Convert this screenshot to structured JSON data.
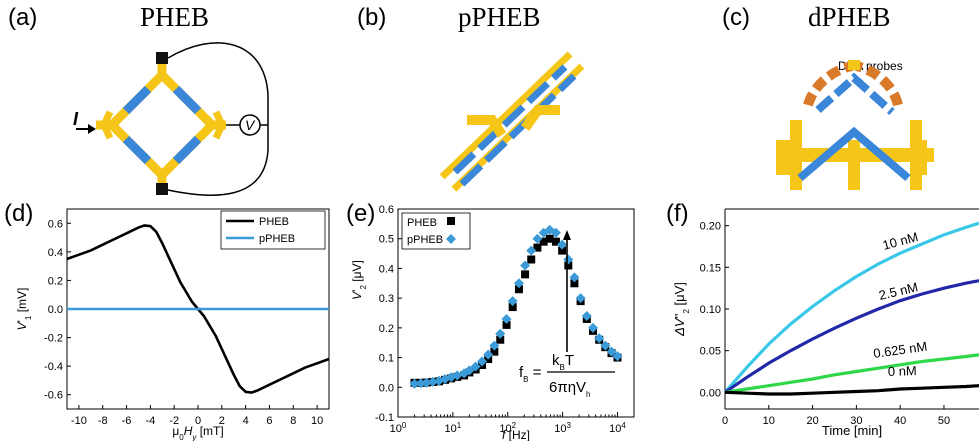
{
  "panels": {
    "a": {
      "label": "(a)",
      "title": "PHEB",
      "current": "I",
      "voltmeter": "V"
    },
    "b": {
      "label": "(b)",
      "title": "pPHEB"
    },
    "c": {
      "label": "(c)",
      "title": "dPHEB",
      "annotation": "DNA probes"
    },
    "d": {
      "label": "(d)"
    },
    "e": {
      "label": "(e)"
    },
    "f": {
      "label": "(f)"
    }
  },
  "colors": {
    "gold": "#f5c518",
    "blue": "#3a86d8",
    "orange": "#d97a2b",
    "black": "#000000",
    "cyan": "#39c8e8"
  },
  "chart_data": [
    {
      "panel": "d",
      "type": "line",
      "xlabel": "μ0Hy [mT]",
      "ylabel": "V'1 [mV]",
      "xlim": [
        -11,
        11
      ],
      "ylim": [
        -0.7,
        0.7
      ],
      "xticks": [
        -10,
        -8,
        -6,
        -4,
        -2,
        0,
        2,
        4,
        6,
        8,
        10
      ],
      "yticks": [
        -0.6,
        -0.4,
        -0.2,
        0.0,
        0.2,
        0.4,
        0.6
      ],
      "ytick_labels": [
        "-0.6",
        "-0.4",
        "-0.2",
        "0.0",
        "0.2",
        "0.4",
        "0.6"
      ],
      "legend": "top-right",
      "series": [
        {
          "name": "PHEB",
          "color": "#000000",
          "x": [
            -11,
            -10,
            -9,
            -8,
            -7,
            -6,
            -5,
            -4.5,
            -4,
            -3.5,
            -3,
            -2.5,
            -2,
            -1.5,
            -1,
            -0.5,
            0,
            0.5,
            1,
            1.5,
            2,
            2.5,
            3,
            3.5,
            4,
            4.5,
            5,
            6,
            7,
            8,
            9,
            10,
            11
          ],
          "y": [
            0.35,
            0.38,
            0.41,
            0.45,
            0.49,
            0.53,
            0.57,
            0.585,
            0.58,
            0.54,
            0.46,
            0.37,
            0.28,
            0.19,
            0.12,
            0.05,
            0.0,
            -0.05,
            -0.12,
            -0.19,
            -0.28,
            -0.37,
            -0.46,
            -0.54,
            -0.58,
            -0.585,
            -0.57,
            -0.53,
            -0.49,
            -0.45,
            -0.41,
            -0.38,
            -0.35
          ]
        },
        {
          "name": "pPHEB",
          "color": "#3a9bd8",
          "x": [
            -11,
            11
          ],
          "y": [
            0.0,
            0.0
          ]
        }
      ]
    },
    {
      "panel": "e",
      "type": "scatter",
      "xlabel": "f [Hz]",
      "ylabel": "V'2 [μV]",
      "xscale": "log",
      "xlim": [
        1,
        20000
      ],
      "ylim": [
        -0.1,
        0.6
      ],
      "xtick_labels": [
        "10^0",
        "10^1",
        "10^2",
        "10^3",
        "10^4"
      ],
      "yticks": [
        -0.1,
        0.0,
        0.1,
        0.2,
        0.3,
        0.4,
        0.5,
        0.6
      ],
      "ytick_labels": [
        "-0.1",
        "0.0",
        "0.1",
        "0.2",
        "0.3",
        "0.4",
        "0.5",
        "0.6"
      ],
      "legend": "top-left",
      "formula": {
        "lhs": "f",
        "lhs_sub": "B",
        "num": "k",
        "num_sub": "B",
        "num_tail": "T",
        "den": "6πηV",
        "den_sub": "h"
      },
      "series": [
        {
          "name": "PHEB",
          "marker": "square",
          "color": "#000000",
          "x": [
            2,
            2.6,
            3.3,
            4.3,
            5.6,
            7.2,
            9.3,
            12,
            16,
            20,
            26,
            34,
            44,
            57,
            73,
            95,
            123,
            160,
            207,
            268,
            347,
            450,
            583,
            756,
            980,
            1270,
            1640,
            2130,
            2760,
            3580,
            4640,
            6010,
            7790,
            10000
          ],
          "y": [
            0.015,
            0.015,
            0.016,
            0.018,
            0.02,
            0.025,
            0.03,
            0.035,
            0.04,
            0.05,
            0.06,
            0.075,
            0.095,
            0.12,
            0.16,
            0.21,
            0.27,
            0.33,
            0.38,
            0.43,
            0.47,
            0.49,
            0.5,
            0.49,
            0.46,
            0.41,
            0.35,
            0.29,
            0.23,
            0.19,
            0.16,
            0.135,
            0.115,
            0.1
          ]
        },
        {
          "name": "pPHEB",
          "marker": "diamond",
          "color": "#3a9bd8",
          "x": [
            2,
            2.6,
            3.3,
            4.3,
            5.6,
            7.2,
            9.3,
            12,
            16,
            20,
            26,
            34,
            44,
            57,
            73,
            95,
            123,
            160,
            207,
            268,
            347,
            450,
            583,
            756,
            980,
            1270,
            1640,
            2130,
            2760,
            3580,
            4640,
            6010,
            7790,
            10000
          ],
          "y": [
            0.012,
            0.013,
            0.015,
            0.018,
            0.022,
            0.028,
            0.034,
            0.04,
            0.047,
            0.057,
            0.07,
            0.087,
            0.11,
            0.14,
            0.18,
            0.23,
            0.29,
            0.35,
            0.41,
            0.46,
            0.5,
            0.52,
            0.53,
            0.52,
            0.48,
            0.43,
            0.37,
            0.3,
            0.24,
            0.2,
            0.165,
            0.14,
            0.12,
            0.105
          ]
        }
      ]
    },
    {
      "panel": "f",
      "type": "line",
      "xlabel": "Time [min]",
      "ylabel": "ΔV''2 [μV]",
      "xlim": [
        0,
        58
      ],
      "ylim": [
        -0.02,
        0.22
      ],
      "xticks": [
        0,
        10,
        20,
        30,
        40,
        50
      ],
      "yticks": [
        0.0,
        0.05,
        0.1,
        0.15,
        0.2
      ],
      "ytick_labels": [
        "0.00",
        "0.05",
        "0.10",
        "0.15",
        "0.20"
      ],
      "series": [
        {
          "name": "10 nM",
          "color": "#39c8e8",
          "x": [
            0,
            5,
            10,
            15,
            20,
            25,
            30,
            35,
            40,
            45,
            50,
            55,
            58
          ],
          "y": [
            0,
            0.03,
            0.058,
            0.082,
            0.103,
            0.122,
            0.139,
            0.154,
            0.167,
            0.178,
            0.189,
            0.198,
            0.203
          ]
        },
        {
          "name": "2.5 nM",
          "color": "#2328a8",
          "x": [
            0,
            5,
            10,
            15,
            20,
            25,
            30,
            35,
            40,
            45,
            50,
            55,
            58
          ],
          "y": [
            0,
            0.018,
            0.035,
            0.05,
            0.064,
            0.077,
            0.089,
            0.1,
            0.11,
            0.118,
            0.125,
            0.131,
            0.134
          ]
        },
        {
          "name": "0.625 nM",
          "color": "#2fd84a",
          "x": [
            0,
            5,
            10,
            15,
            20,
            25,
            30,
            35,
            40,
            45,
            50,
            55,
            58
          ],
          "y": [
            0,
            0.004,
            0.008,
            0.012,
            0.016,
            0.021,
            0.025,
            0.029,
            0.033,
            0.037,
            0.04,
            0.043,
            0.045
          ]
        },
        {
          "name": "0 nM",
          "color": "#000000",
          "x": [
            0,
            5,
            10,
            15,
            20,
            25,
            30,
            35,
            40,
            45,
            50,
            55,
            58
          ],
          "y": [
            0,
            -0.001,
            -0.002,
            -0.002,
            -0.001,
            0,
            0.001,
            0.002,
            0.004,
            0.005,
            0.006,
            0.007,
            0.008
          ]
        }
      ]
    }
  ]
}
